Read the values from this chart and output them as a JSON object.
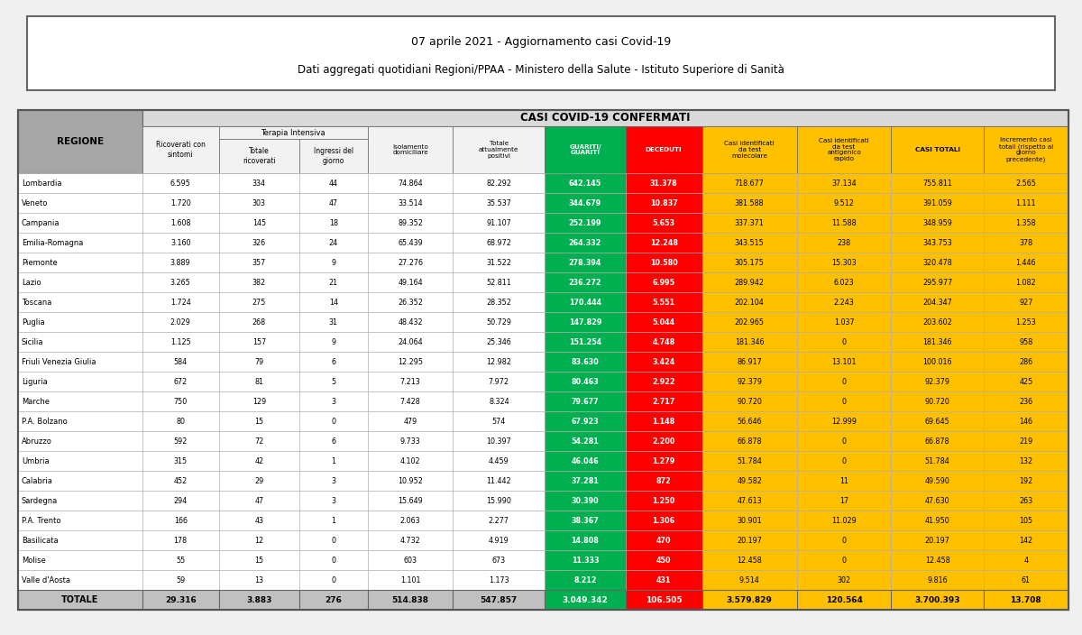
{
  "title1": "07 aprile 2021 - Aggiornamento casi Covid-19",
  "title2": "Dati aggregati quotidiani Regioni/PPAA - Ministero della Salute - Istituto Superiore di Sanità",
  "header_main": "CASI COVID-19 CONFERMATI",
  "subheader": "Terapia Intensiva",
  "regions": [
    "Lombardia",
    "Veneto",
    "Campania",
    "Emilia-Romagna",
    "Piemonte",
    "Lazio",
    "Toscana",
    "Puglia",
    "Sicilia",
    "Friuli Venezia Giulia",
    "Liguria",
    "Marche",
    "P.A. Bolzano",
    "Abruzzo",
    "Umbria",
    "Calabria",
    "Sardegna",
    "P.A. Trento",
    "Basilicata",
    "Molise",
    "Valle d'Aosta"
  ],
  "data": [
    [
      6595,
      334,
      44,
      74864,
      82292,
      642145,
      31378,
      718677,
      37134,
      755811,
      2565
    ],
    [
      1720,
      303,
      47,
      33514,
      35537,
      344679,
      10837,
      381588,
      9512,
      391059,
      1111
    ],
    [
      1608,
      145,
      18,
      89352,
      91107,
      252199,
      5653,
      337371,
      11588,
      348959,
      1358
    ],
    [
      3160,
      326,
      24,
      65439,
      68972,
      264332,
      12248,
      343515,
      238,
      343753,
      378
    ],
    [
      3889,
      357,
      9,
      27276,
      31522,
      278394,
      10580,
      305175,
      15303,
      320478,
      1446
    ],
    [
      3265,
      382,
      21,
      49164,
      52811,
      236272,
      6995,
      289942,
      6023,
      295977,
      1082
    ],
    [
      1724,
      275,
      14,
      26352,
      28352,
      170444,
      5551,
      202104,
      2243,
      204347,
      927
    ],
    [
      2029,
      268,
      31,
      48432,
      50729,
      147829,
      5044,
      202965,
      1037,
      203602,
      1253
    ],
    [
      1125,
      157,
      9,
      24064,
      25346,
      151254,
      4748,
      181346,
      0,
      181346,
      958
    ],
    [
      584,
      79,
      6,
      12295,
      12982,
      83630,
      3424,
      86917,
      13101,
      100016,
      286
    ],
    [
      672,
      81,
      5,
      7213,
      7972,
      80463,
      2922,
      92379,
      0,
      92379,
      425
    ],
    [
      750,
      129,
      3,
      7428,
      8324,
      79677,
      2717,
      90720,
      0,
      90720,
      236
    ],
    [
      80,
      15,
      0,
      479,
      574,
      67923,
      1148,
      56646,
      12999,
      69645,
      146
    ],
    [
      592,
      72,
      6,
      9733,
      10397,
      54281,
      2200,
      66878,
      0,
      66878,
      219
    ],
    [
      315,
      42,
      1,
      4102,
      4459,
      46046,
      1279,
      51784,
      0,
      51784,
      132
    ],
    [
      452,
      29,
      3,
      10952,
      11442,
      37281,
      872,
      49582,
      11,
      49590,
      192
    ],
    [
      294,
      47,
      3,
      15649,
      15990,
      30390,
      1250,
      47613,
      17,
      47630,
      263
    ],
    [
      166,
      43,
      1,
      2063,
      2277,
      38367,
      1306,
      30901,
      11029,
      41950,
      105
    ],
    [
      178,
      12,
      0,
      4732,
      4919,
      14808,
      470,
      20197,
      0,
      20197,
      142
    ],
    [
      55,
      15,
      0,
      603,
      673,
      11333,
      450,
      12458,
      0,
      12458,
      4
    ],
    [
      59,
      13,
      0,
      1101,
      1173,
      8212,
      431,
      9514,
      302,
      9816,
      61
    ]
  ],
  "totals": [
    29316,
    3883,
    276,
    514838,
    547857,
    3049342,
    106505,
    3579829,
    120564,
    3700393,
    13708
  ],
  "col_colors": {
    "region": "#a6a6a6",
    "white": "#ffffff",
    "light_gray": "#f2f2f2",
    "guariti": "#00b050",
    "deceduti": "#ff0000",
    "yellow": "#ffc000",
    "header_bg": "#d9d9d9",
    "total_row_bg": "#c0c0c0"
  },
  "background": "#e8e8e8",
  "outer_bg": "#ffffff"
}
